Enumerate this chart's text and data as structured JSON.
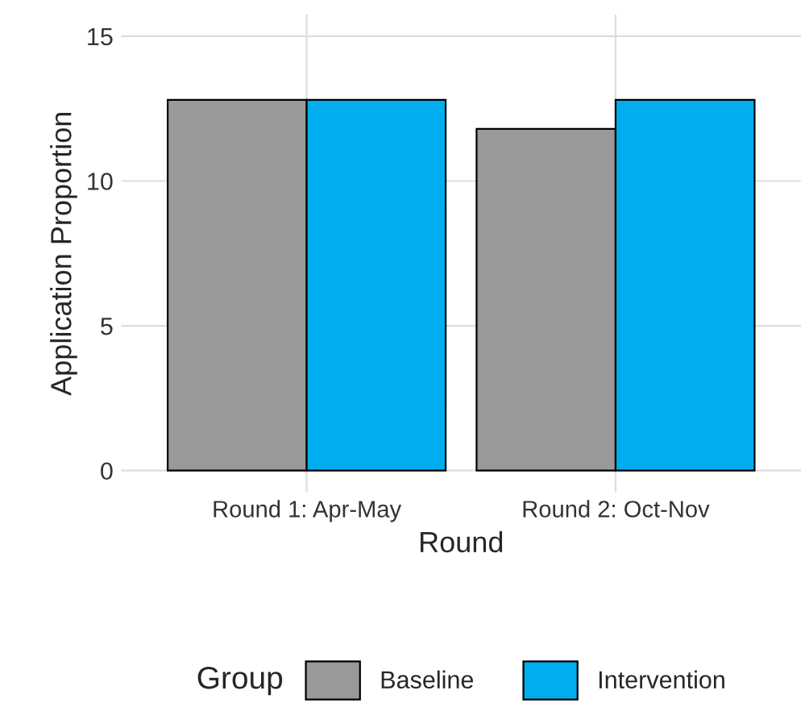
{
  "chart_data": {
    "type": "bar",
    "xlabel": "Round",
    "ylabel": "Application Proportion",
    "legend_title": "Group",
    "categories": [
      "Round 1: Apr-May",
      "Round 2: Oct-Nov"
    ],
    "series": [
      {
        "name": "Baseline",
        "color": "#999999",
        "values": [
          12.8,
          11.8
        ]
      },
      {
        "name": "Intervention",
        "color": "#00aef0",
        "values": [
          12.8,
          12.8
        ]
      }
    ],
    "ylim": [
      -0.75,
      15.75
    ],
    "yticks": [
      0,
      5,
      10,
      15
    ],
    "grid": true,
    "legend": "bottom"
  }
}
